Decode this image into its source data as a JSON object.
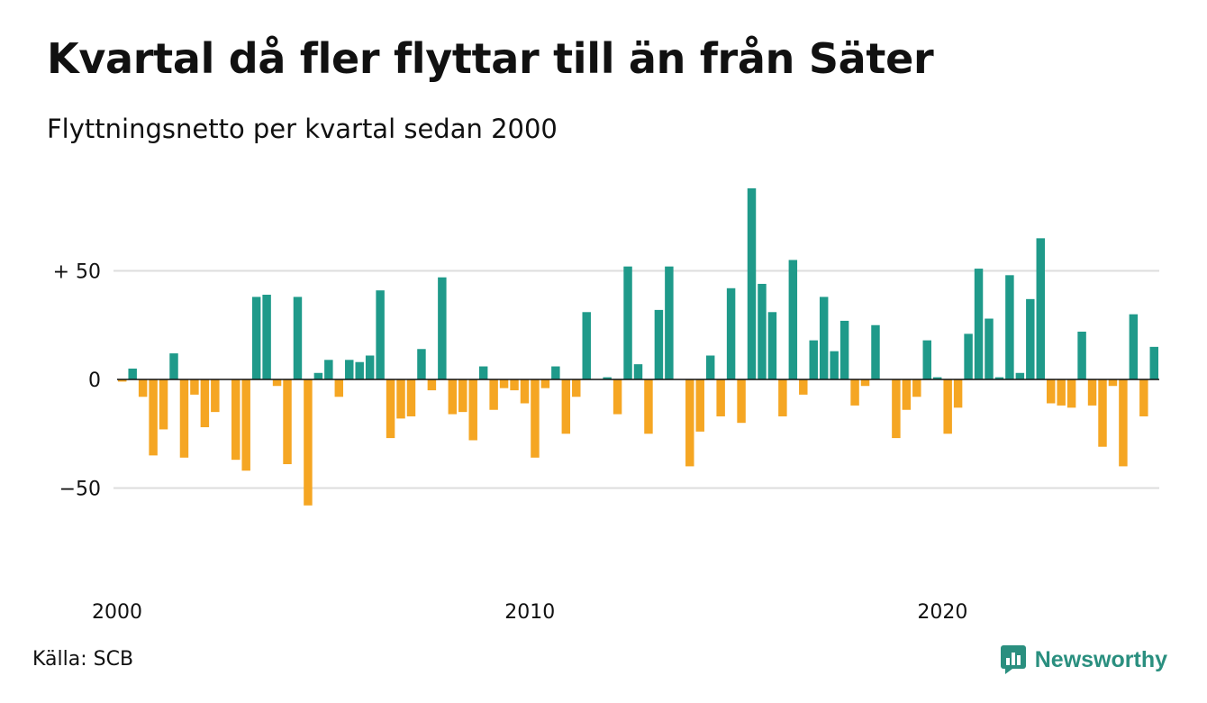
{
  "chart_data": {
    "type": "bar",
    "title": "Kvartal då fler flyttar till än från Säter",
    "subtitle": "Flyttningsnetto per kvartal sedan 2000",
    "source": "Källa: SCB",
    "x_start_year": 2000,
    "x_tick_labels": [
      "2000",
      "2010",
      "2020"
    ],
    "y_tick_labels": [
      "+ 50",
      "0",
      "−50"
    ],
    "y_ticks": [
      50,
      0,
      -50
    ],
    "ylim": [
      -60,
      90
    ],
    "grid": true,
    "colors": {
      "positive": "#1f9a8a",
      "negative": "#f5a623",
      "grid": "#dddddd",
      "axis": "#111111"
    },
    "values": [
      -1,
      5,
      -8,
      -35,
      -23,
      12,
      -36,
      -7,
      -22,
      -15,
      0,
      -37,
      -42,
      38,
      39,
      -3,
      -39,
      38,
      -58,
      3,
      9,
      -8,
      9,
      8,
      11,
      41,
      -27,
      -18,
      -17,
      14,
      -5,
      47,
      -16,
      -15,
      -28,
      6,
      -14,
      -4,
      -5,
      -11,
      -36,
      -4,
      6,
      -25,
      -8,
      31,
      0,
      1,
      -16,
      52,
      7,
      -25,
      32,
      52,
      0,
      -40,
      -24,
      11,
      -17,
      42,
      -20,
      88,
      44,
      31,
      -17,
      55,
      -7,
      18,
      38,
      13,
      27,
      -12,
      -3,
      25,
      0,
      -27,
      -14,
      -8,
      18,
      1,
      -25,
      -13,
      21,
      51,
      28,
      1,
      48,
      3,
      37,
      65,
      -11,
      -12,
      -13,
      22,
      -12,
      -31,
      -3,
      -40,
      30,
      -17,
      15
    ]
  },
  "footer": {
    "brand": "Newsworthy"
  }
}
